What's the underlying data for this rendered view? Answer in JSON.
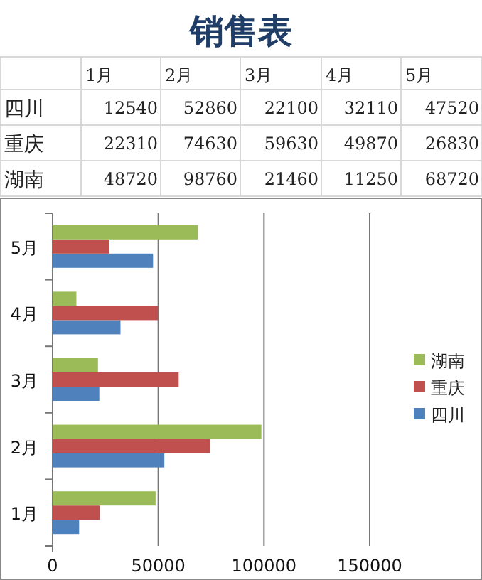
{
  "chart_data": [
    {
      "type": "heatmap",
      "title": "销售表",
      "categories": [
        "1月",
        "2月",
        "3月",
        "4月",
        "5月"
      ],
      "y_categories": [
        "四川",
        "重庆",
        "湖南"
      ],
      "cells": [
        [
          12540,
          52860,
          22100,
          32110,
          47520
        ],
        [
          22310,
          74630,
          59630,
          49870,
          26830
        ],
        [
          48720,
          98760,
          21460,
          11250,
          68720
        ]
      ],
      "data_labels": true
    },
    {
      "type": "bar",
      "orientation": "horizontal",
      "categories": [
        "5月",
        "4月",
        "3月",
        "2月",
        "1月"
      ],
      "series": [
        {
          "name": "四川",
          "color": "#4f81bd",
          "values": [
            47520,
            32110,
            22100,
            52860,
            12540
          ]
        },
        {
          "name": "重庆",
          "color": "#c0504d",
          "values": [
            26830,
            49870,
            59630,
            74630,
            22310
          ]
        },
        {
          "name": "湖南",
          "color": "#9bbb59",
          "values": [
            68720,
            11250,
            21460,
            98760,
            48720
          ]
        }
      ],
      "xlim": [
        0,
        150000
      ],
      "xticks": [
        0,
        50000,
        100000,
        150000
      ],
      "grid": "x",
      "legend": "right"
    }
  ]
}
